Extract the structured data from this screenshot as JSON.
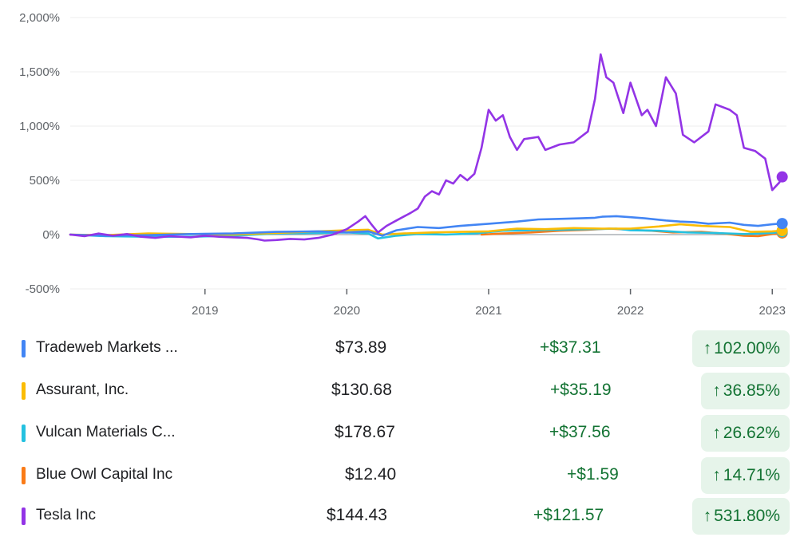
{
  "chart_data": {
    "type": "line",
    "yticks": [
      "2,000%",
      "1,500%",
      "1,000%",
      "500%",
      "0%",
      "-500%"
    ],
    "ytick_values": [
      2000,
      1500,
      1000,
      500,
      0,
      -500
    ],
    "ylim": [
      -500,
      2000
    ],
    "xticks": [
      "2019",
      "2020",
      "2021",
      "2022",
      "2023"
    ],
    "xtick_values": [
      2019.0,
      2020.0,
      2021.0,
      2022.0,
      2023.0
    ],
    "xlim": [
      2018.05,
      2023.1
    ],
    "grid": true,
    "series": [
      {
        "name": "Tradeweb Markets ...",
        "color": "#4285f4",
        "points": [
          [
            2018.05,
            0
          ],
          [
            2018.3,
            -10
          ],
          [
            2018.6,
            -5
          ],
          [
            2018.9,
            5
          ],
          [
            2019.2,
            10
          ],
          [
            2019.5,
            25
          ],
          [
            2019.8,
            30
          ],
          [
            2020.0,
            20
          ],
          [
            2020.15,
            30
          ],
          [
            2020.25,
            -10
          ],
          [
            2020.35,
            40
          ],
          [
            2020.5,
            70
          ],
          [
            2020.65,
            60
          ],
          [
            2020.8,
            80
          ],
          [
            2021.0,
            100
          ],
          [
            2021.2,
            120
          ],
          [
            2021.35,
            140
          ],
          [
            2021.5,
            145
          ],
          [
            2021.65,
            150
          ],
          [
            2021.75,
            155
          ],
          [
            2021.8,
            165
          ],
          [
            2021.9,
            170
          ],
          [
            2022.0,
            160
          ],
          [
            2022.1,
            150
          ],
          [
            2022.25,
            130
          ],
          [
            2022.35,
            120
          ],
          [
            2022.45,
            115
          ],
          [
            2022.55,
            100
          ],
          [
            2022.7,
            110
          ],
          [
            2022.8,
            90
          ],
          [
            2022.9,
            80
          ],
          [
            2023.0,
            95
          ],
          [
            2023.07,
            102
          ]
        ]
      },
      {
        "name": "Assurant, Inc.",
        "color": "#fbbc04",
        "points": [
          [
            2018.05,
            0
          ],
          [
            2018.3,
            -5
          ],
          [
            2018.6,
            10
          ],
          [
            2018.9,
            5
          ],
          [
            2019.2,
            0
          ],
          [
            2019.5,
            15
          ],
          [
            2019.8,
            30
          ],
          [
            2020.0,
            40
          ],
          [
            2020.15,
            45
          ],
          [
            2020.25,
            0
          ],
          [
            2020.4,
            10
          ],
          [
            2020.6,
            20
          ],
          [
            2020.8,
            25
          ],
          [
            2021.0,
            30
          ],
          [
            2021.2,
            55
          ],
          [
            2021.4,
            50
          ],
          [
            2021.6,
            60
          ],
          [
            2021.8,
            55
          ],
          [
            2022.0,
            55
          ],
          [
            2022.2,
            75
          ],
          [
            2022.35,
            95
          ],
          [
            2022.5,
            80
          ],
          [
            2022.7,
            70
          ],
          [
            2022.85,
            25
          ],
          [
            2023.0,
            30
          ],
          [
            2023.07,
            37
          ]
        ]
      },
      {
        "name": "Vulcan Materials C...",
        "color": "#24c1e0",
        "points": [
          [
            2018.05,
            0
          ],
          [
            2018.3,
            -15
          ],
          [
            2018.6,
            -20
          ],
          [
            2018.9,
            -20
          ],
          [
            2019.2,
            -10
          ],
          [
            2019.5,
            10
          ],
          [
            2019.8,
            15
          ],
          [
            2020.0,
            20
          ],
          [
            2020.15,
            10
          ],
          [
            2020.22,
            -35
          ],
          [
            2020.35,
            -10
          ],
          [
            2020.5,
            5
          ],
          [
            2020.7,
            0
          ],
          [
            2020.9,
            10
          ],
          [
            2021.1,
            35
          ],
          [
            2021.3,
            40
          ],
          [
            2021.5,
            45
          ],
          [
            2021.7,
            50
          ],
          [
            2021.9,
            55
          ],
          [
            2022.0,
            40
          ],
          [
            2022.2,
            35
          ],
          [
            2022.4,
            20
          ],
          [
            2022.6,
            15
          ],
          [
            2022.8,
            5
          ],
          [
            2023.0,
            15
          ],
          [
            2023.07,
            27
          ]
        ]
      },
      {
        "name": "Blue Owl Capital Inc",
        "color": "#fa7b17",
        "points": [
          [
            2020.95,
            0
          ],
          [
            2021.1,
            10
          ],
          [
            2021.3,
            20
          ],
          [
            2021.5,
            35
          ],
          [
            2021.7,
            45
          ],
          [
            2021.85,
            55
          ],
          [
            2022.0,
            45
          ],
          [
            2022.15,
            35
          ],
          [
            2022.3,
            20
          ],
          [
            2022.5,
            25
          ],
          [
            2022.65,
            10
          ],
          [
            2022.8,
            -10
          ],
          [
            2022.9,
            -15
          ],
          [
            2023.0,
            5
          ],
          [
            2023.07,
            15
          ]
        ]
      },
      {
        "name": "Tesla Inc",
        "color": "#9334e6",
        "points": [
          [
            2018.05,
            0
          ],
          [
            2018.15,
            -15
          ],
          [
            2018.25,
            10
          ],
          [
            2018.35,
            -10
          ],
          [
            2018.45,
            5
          ],
          [
            2018.55,
            -20
          ],
          [
            2018.65,
            -30
          ],
          [
            2018.75,
            -15
          ],
          [
            2018.9,
            -25
          ],
          [
            2019.0,
            -10
          ],
          [
            2019.1,
            -20
          ],
          [
            2019.2,
            -25
          ],
          [
            2019.3,
            -30
          ],
          [
            2019.38,
            -45
          ],
          [
            2019.42,
            -55
          ],
          [
            2019.5,
            -50
          ],
          [
            2019.6,
            -40
          ],
          [
            2019.7,
            -45
          ],
          [
            2019.8,
            -30
          ],
          [
            2019.9,
            0
          ],
          [
            2020.0,
            50
          ],
          [
            2020.08,
            120
          ],
          [
            2020.13,
            170
          ],
          [
            2020.17,
            100
          ],
          [
            2020.22,
            20
          ],
          [
            2020.28,
            80
          ],
          [
            2020.35,
            130
          ],
          [
            2020.45,
            200
          ],
          [
            2020.5,
            240
          ],
          [
            2020.55,
            350
          ],
          [
            2020.6,
            400
          ],
          [
            2020.65,
            370
          ],
          [
            2020.7,
            500
          ],
          [
            2020.75,
            470
          ],
          [
            2020.8,
            550
          ],
          [
            2020.85,
            500
          ],
          [
            2020.9,
            560
          ],
          [
            2020.95,
            800
          ],
          [
            2021.0,
            1150
          ],
          [
            2021.05,
            1050
          ],
          [
            2021.1,
            1100
          ],
          [
            2021.15,
            900
          ],
          [
            2021.2,
            780
          ],
          [
            2021.25,
            880
          ],
          [
            2021.35,
            900
          ],
          [
            2021.4,
            780
          ],
          [
            2021.5,
            830
          ],
          [
            2021.6,
            850
          ],
          [
            2021.7,
            950
          ],
          [
            2021.75,
            1250
          ],
          [
            2021.79,
            1660
          ],
          [
            2021.83,
            1450
          ],
          [
            2021.88,
            1400
          ],
          [
            2021.95,
            1120
          ],
          [
            2022.0,
            1400
          ],
          [
            2022.08,
            1100
          ],
          [
            2022.12,
            1150
          ],
          [
            2022.18,
            1000
          ],
          [
            2022.25,
            1450
          ],
          [
            2022.32,
            1300
          ],
          [
            2022.37,
            920
          ],
          [
            2022.45,
            850
          ],
          [
            2022.55,
            950
          ],
          [
            2022.6,
            1200
          ],
          [
            2022.7,
            1150
          ],
          [
            2022.75,
            1100
          ],
          [
            2022.8,
            800
          ],
          [
            2022.88,
            770
          ],
          [
            2022.95,
            700
          ],
          [
            2023.0,
            410
          ],
          [
            2023.05,
            480
          ],
          [
            2023.07,
            532
          ]
        ]
      }
    ]
  },
  "legend": {
    "rows": [
      {
        "name": "Tradeweb Markets ...",
        "price": "$73.89",
        "change": "+$37.31",
        "pct": "102.00%",
        "color": "#4285f4"
      },
      {
        "name": "Assurant, Inc.",
        "price": "$130.68",
        "change": "+$35.19",
        "pct": "36.85%",
        "color": "#fbbc04"
      },
      {
        "name": "Vulcan Materials C...",
        "price": "$178.67",
        "change": "+$37.56",
        "pct": "26.62%",
        "color": "#24c1e0"
      },
      {
        "name": "Blue Owl Capital Inc",
        "price": "$12.40",
        "change": "+$1.59",
        "pct": "14.71%",
        "color": "#fa7b17"
      },
      {
        "name": "Tesla Inc",
        "price": "$144.43",
        "change": "+$121.57",
        "pct": "531.80%",
        "color": "#9334e6"
      }
    ],
    "arrow": "↑"
  }
}
